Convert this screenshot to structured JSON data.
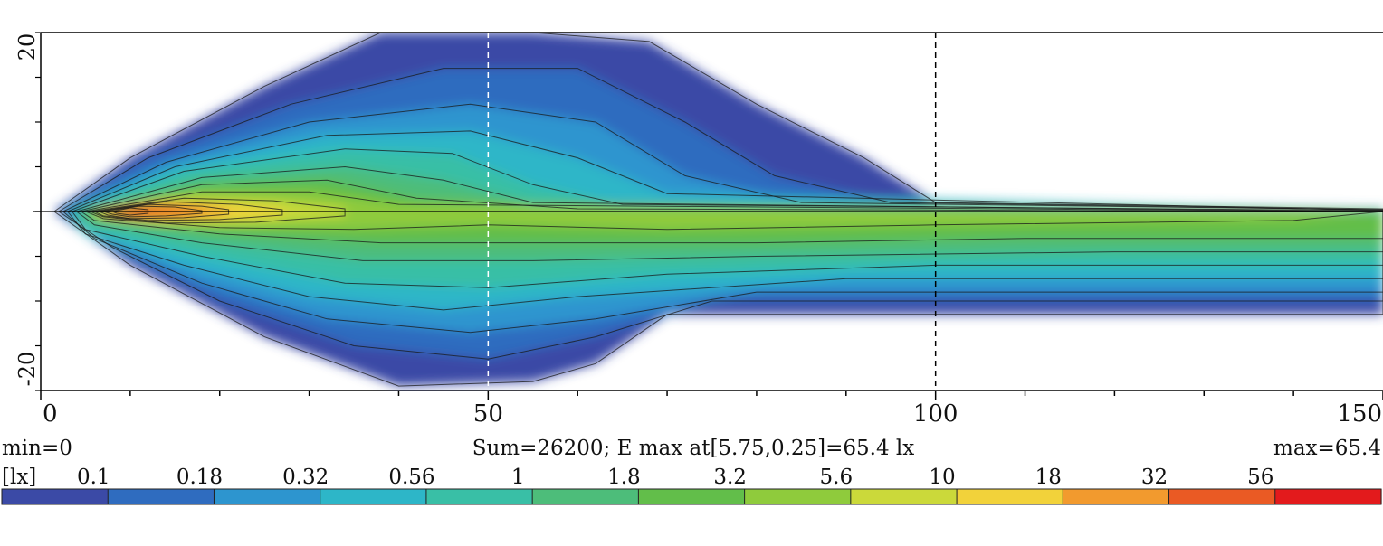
{
  "chart_data": {
    "type": "heatmap",
    "title": "",
    "xlabel": "",
    "ylabel": "",
    "xlim": [
      0,
      150
    ],
    "ylim": [
      -20,
      20
    ],
    "x_ticks": [
      "0",
      "50",
      "100",
      "150"
    ],
    "y_ticks": [
      "20",
      "-20"
    ],
    "grid_x": [
      50,
      100
    ],
    "reference_line_y": 0,
    "stats": {
      "min_label": "min=0",
      "summary": "Sum=26200; E max at[5.75,0.25]=65.4 lx",
      "max_label": "max=65.4",
      "max_value": 65.4,
      "max_location": [
        5.75,
        0.25
      ],
      "sum": 26200
    },
    "colorbar": {
      "unit_label": "[lx]",
      "levels": [
        "0.1",
        "0.18",
        "0.32",
        "0.56",
        "1",
        "1.8",
        "3.2",
        "5.6",
        "10",
        "18",
        "32",
        "56"
      ],
      "level_values": [
        0.1,
        0.18,
        0.32,
        0.56,
        1,
        1.8,
        3.2,
        5.6,
        10,
        18,
        32,
        56
      ],
      "colors": [
        "#3b4aa6",
        "#2f6cbf",
        "#2d95cf",
        "#2db6c8",
        "#39bfa6",
        "#4dbd7a",
        "#62be4a",
        "#8fcb3c",
        "#cbd93a",
        "#f2d23a",
        "#f29a2e",
        "#ea5a24",
        "#e31a1c"
      ]
    },
    "contour_levels": [
      0.1,
      0.18,
      0.32,
      0.56,
      1,
      1.8,
      3.2,
      5.6,
      10,
      18,
      32,
      56
    ]
  }
}
